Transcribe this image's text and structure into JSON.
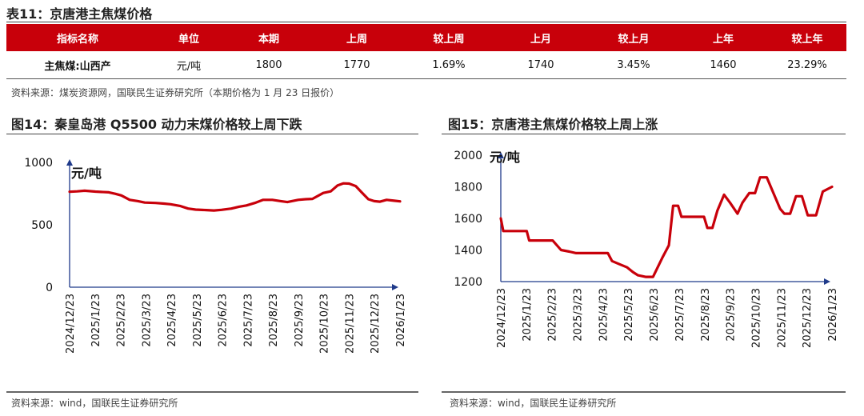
{
  "table11": {
    "title": "表11：京唐港主焦煤价格",
    "headers": [
      "指标名称",
      "单位",
      "本期",
      "上周",
      "较上周",
      "上月",
      "较上月",
      "上年",
      "较上年"
    ],
    "rows": [
      [
        "主焦煤:山西产",
        "元/吨",
        "1800",
        "1770",
        "1.69%",
        "1740",
        "3.45%",
        "1460",
        "23.29%"
      ]
    ],
    "source": "资料来源：煤炭资源网，国联民生证券研究所（本期价格为 1 月 23 日报价）"
  },
  "colors": {
    "accent": "#c8000a",
    "axis": "#1f3a8a"
  },
  "chart_data": [
    {
      "type": "line",
      "title": "图14：秦皇岛港 Q5500 动力末煤价格较上周下跌",
      "ylabel": "元/吨",
      "ylim": [
        0,
        1000
      ],
      "yticks": [
        0,
        500,
        1000
      ],
      "xlim": [
        "2024-12-23",
        "2026-01-23"
      ],
      "xtick_labels": [
        "2024/12/23",
        "2025/1/23",
        "2025/2/23",
        "2025/3/23",
        "2025/4/23",
        "2025/5/23",
        "2025/6/23",
        "2025/7/23",
        "2025/8/23",
        "2025/9/23",
        "2025/10/23",
        "2025/11/23",
        "2025/12/23",
        "2026/1/23"
      ],
      "series": [
        {
          "color": "#c8000a",
          "points": [
            [
              "2024-12-23",
              765
            ],
            [
              "2025-01-01",
              768
            ],
            [
              "2025-01-10",
              773
            ],
            [
              "2025-01-23",
              766
            ],
            [
              "2025-02-08",
              760
            ],
            [
              "2025-02-16",
              748
            ],
            [
              "2025-02-23",
              735
            ],
            [
              "2025-03-05",
              700
            ],
            [
              "2025-03-15",
              690
            ],
            [
              "2025-03-23",
              678
            ],
            [
              "2025-04-05",
              675
            ],
            [
              "2025-04-15",
              670
            ],
            [
              "2025-04-23",
              665
            ],
            [
              "2025-05-05",
              650
            ],
            [
              "2025-05-14",
              630
            ],
            [
              "2025-05-23",
              622
            ],
            [
              "2025-06-05",
              618
            ],
            [
              "2025-06-14",
              615
            ],
            [
              "2025-06-23",
              620
            ],
            [
              "2025-07-05",
              630
            ],
            [
              "2025-07-14",
              645
            ],
            [
              "2025-07-23",
              655
            ],
            [
              "2025-08-02",
              675
            ],
            [
              "2025-08-12",
              700
            ],
            [
              "2025-08-23",
              700
            ],
            [
              "2025-09-02",
              690
            ],
            [
              "2025-09-10",
              682
            ],
            [
              "2025-09-23",
              700
            ],
            [
              "2025-10-02",
              705
            ],
            [
              "2025-10-10",
              708
            ],
            [
              "2025-10-23",
              755
            ],
            [
              "2025-11-01",
              768
            ],
            [
              "2025-11-09",
              815
            ],
            [
              "2025-11-16",
              832
            ],
            [
              "2025-11-23",
              830
            ],
            [
              "2025-12-01",
              810
            ],
            [
              "2025-12-08",
              760
            ],
            [
              "2025-12-16",
              705
            ],
            [
              "2025-12-23",
              690
            ],
            [
              "2025-12-30",
              685
            ],
            [
              "2026-01-07",
              700
            ],
            [
              "2026-01-16",
              693
            ],
            [
              "2026-01-23",
              688
            ]
          ]
        }
      ],
      "source": "资料来源：wind，国联民生证券研究所"
    },
    {
      "type": "line",
      "title": "图15：京唐港主焦煤价格较上周上涨",
      "ylabel": "元/吨",
      "ylim": [
        1200,
        2000
      ],
      "yticks": [
        1200,
        1400,
        1600,
        1800,
        2000
      ],
      "xlim": [
        "2024-12-23",
        "2026-01-23"
      ],
      "xtick_labels": [
        "2024/12/23",
        "2025/1/23",
        "2025/2/23",
        "2025/3/23",
        "2025/4/23",
        "2025/5/23",
        "2025/6/23",
        "2025/7/23",
        "2025/8/23",
        "2025/9/23",
        "2025/10/23",
        "2025/11/23",
        "2025/12/23",
        "2026/1/23"
      ],
      "series": [
        {
          "color": "#c8000a",
          "points": [
            [
              "2024-12-23",
              1600
            ],
            [
              "2024-12-26",
              1520
            ],
            [
              "2025-01-23",
              1520
            ],
            [
              "2025-01-26",
              1460
            ],
            [
              "2025-02-23",
              1460
            ],
            [
              "2025-03-05",
              1400
            ],
            [
              "2025-03-15",
              1390
            ],
            [
              "2025-03-23",
              1380
            ],
            [
              "2025-04-23",
              1380
            ],
            [
              "2025-04-30",
              1380
            ],
            [
              "2025-05-05",
              1330
            ],
            [
              "2025-05-14",
              1310
            ],
            [
              "2025-05-23",
              1290
            ],
            [
              "2025-05-30",
              1260
            ],
            [
              "2025-06-05",
              1240
            ],
            [
              "2025-06-14",
              1230
            ],
            [
              "2025-06-23",
              1230
            ],
            [
              "2025-07-04",
              1350
            ],
            [
              "2025-07-12",
              1430
            ],
            [
              "2025-07-17",
              1680
            ],
            [
              "2025-07-23",
              1680
            ],
            [
              "2025-07-27",
              1610
            ],
            [
              "2025-08-23",
              1610
            ],
            [
              "2025-08-27",
              1540
            ],
            [
              "2025-09-02",
              1540
            ],
            [
              "2025-09-08",
              1650
            ],
            [
              "2025-09-16",
              1750
            ],
            [
              "2025-09-23",
              1700
            ],
            [
              "2025-10-02",
              1630
            ],
            [
              "2025-10-08",
              1700
            ],
            [
              "2025-10-16",
              1760
            ],
            [
              "2025-10-23",
              1760
            ],
            [
              "2025-10-29",
              1860
            ],
            [
              "2025-11-06",
              1860
            ],
            [
              "2025-11-14",
              1760
            ],
            [
              "2025-11-22",
              1660
            ],
            [
              "2025-11-27",
              1630
            ],
            [
              "2025-12-04",
              1630
            ],
            [
              "2025-12-11",
              1740
            ],
            [
              "2025-12-18",
              1740
            ],
            [
              "2025-12-25",
              1620
            ],
            [
              "2026-01-04",
              1620
            ],
            [
              "2026-01-12",
              1770
            ],
            [
              "2026-01-23",
              1800
            ]
          ]
        }
      ],
      "source": "资料来源：wind，国联民生证券研究所"
    }
  ]
}
